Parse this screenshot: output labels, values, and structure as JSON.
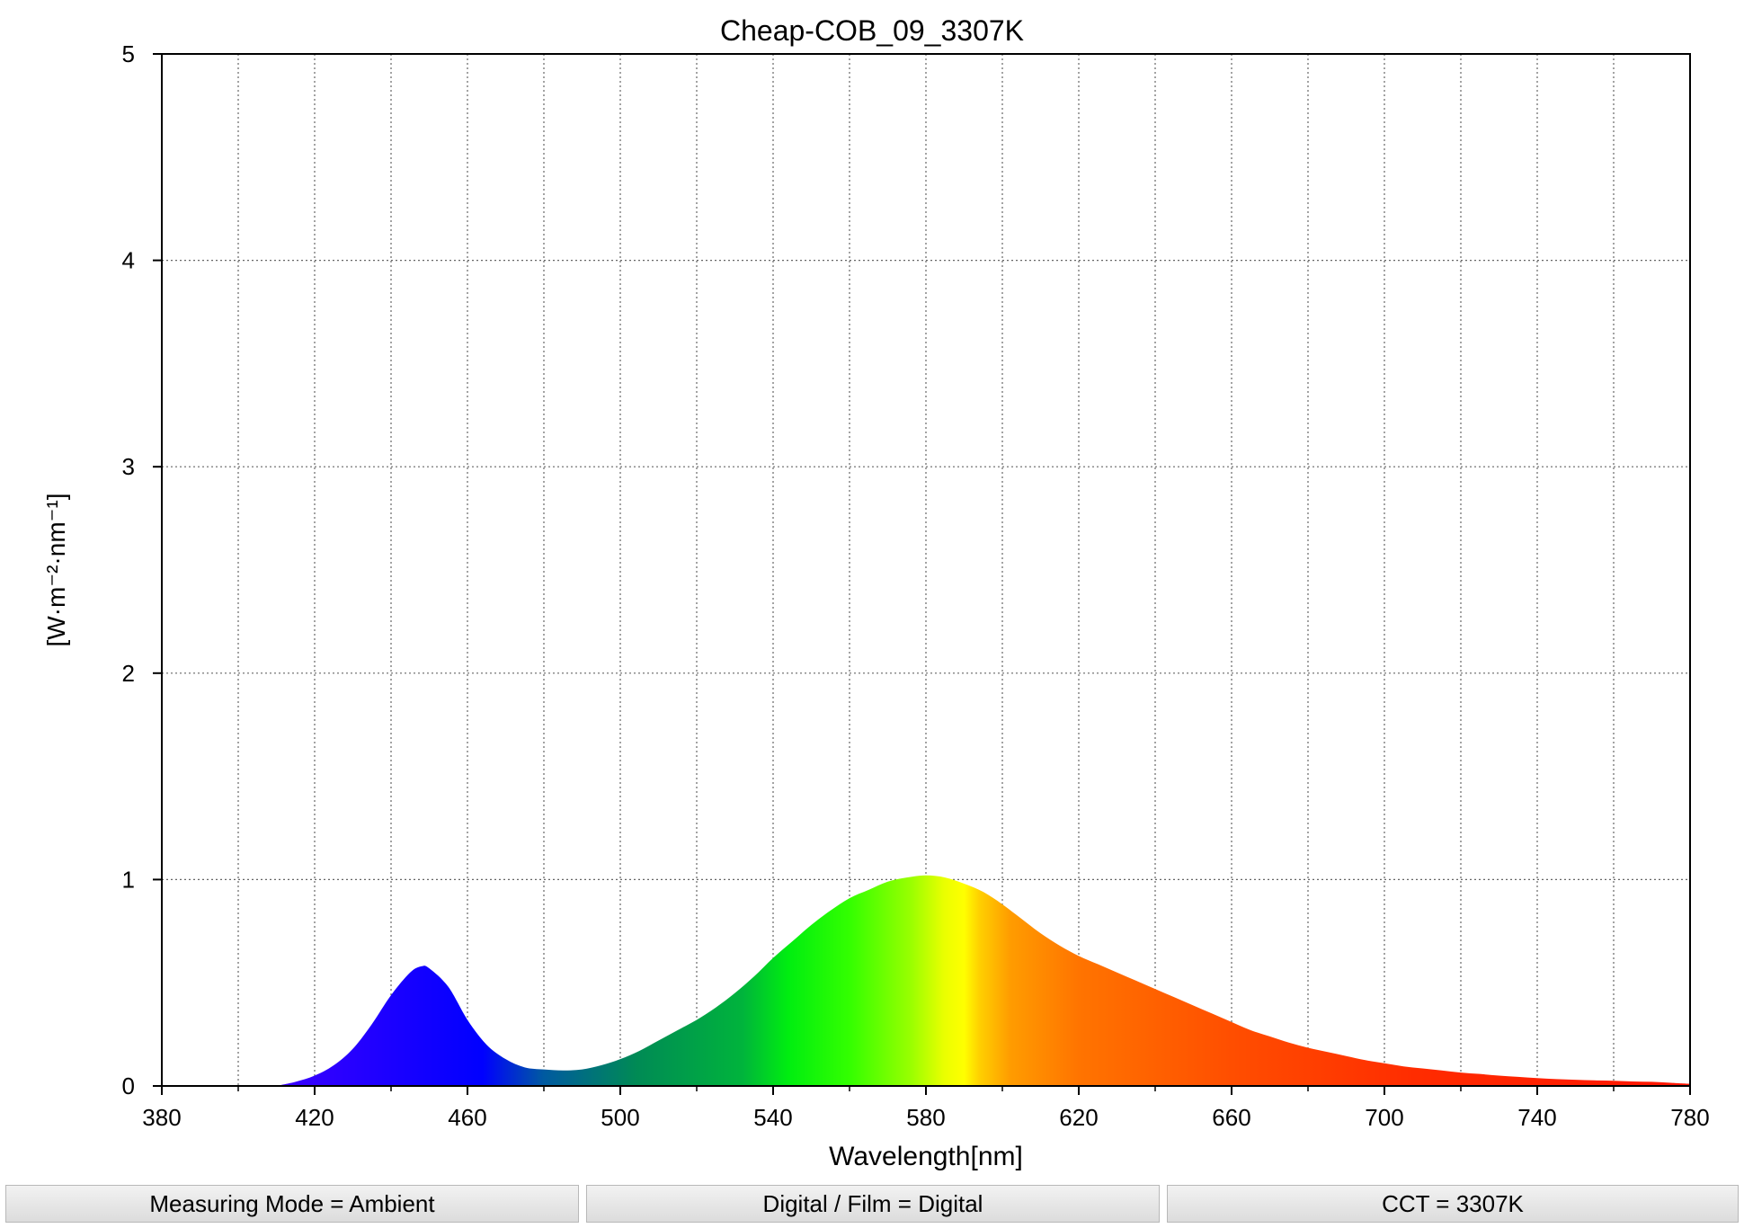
{
  "chart_data": {
    "type": "area",
    "title": "Cheap-COB_09_3307K",
    "xlabel": "Wavelength[nm]",
    "ylabel": "[W·m⁻²·nm⁻¹]",
    "xlim": [
      380,
      780
    ],
    "ylim": [
      0,
      5
    ],
    "xticks": [
      "380",
      "420",
      "460",
      "500",
      "540",
      "580",
      "620",
      "660",
      "700",
      "740",
      "780"
    ],
    "yticks": [
      "0",
      "1",
      "2",
      "3",
      "4",
      "5"
    ],
    "grid": true,
    "fill": "visible-spectrum-gradient",
    "x": [
      410,
      415,
      420,
      425,
      430,
      435,
      440,
      445,
      448,
      450,
      455,
      460,
      465,
      470,
      475,
      480,
      485,
      490,
      495,
      500,
      505,
      510,
      515,
      520,
      525,
      530,
      535,
      540,
      545,
      550,
      555,
      560,
      565,
      570,
      575,
      580,
      585,
      590,
      595,
      600,
      605,
      610,
      615,
      620,
      625,
      630,
      635,
      640,
      645,
      650,
      655,
      660,
      665,
      670,
      675,
      680,
      685,
      690,
      695,
      700,
      705,
      710,
      715,
      720,
      725,
      730,
      735,
      740,
      745,
      750,
      755,
      760,
      765,
      770,
      775,
      780
    ],
    "y": [
      0.0,
      0.02,
      0.05,
      0.1,
      0.18,
      0.3,
      0.44,
      0.55,
      0.58,
      0.57,
      0.48,
      0.32,
      0.2,
      0.13,
      0.09,
      0.08,
      0.075,
      0.08,
      0.1,
      0.13,
      0.17,
      0.22,
      0.27,
      0.32,
      0.38,
      0.45,
      0.53,
      0.62,
      0.7,
      0.78,
      0.85,
      0.91,
      0.95,
      0.99,
      1.01,
      1.02,
      1.01,
      0.98,
      0.94,
      0.88,
      0.81,
      0.74,
      0.68,
      0.63,
      0.59,
      0.55,
      0.51,
      0.47,
      0.43,
      0.39,
      0.35,
      0.31,
      0.27,
      0.24,
      0.21,
      0.185,
      0.165,
      0.145,
      0.125,
      0.11,
      0.095,
      0.085,
      0.075,
      0.065,
      0.058,
      0.05,
      0.044,
      0.038,
      0.033,
      0.03,
      0.027,
      0.025,
      0.022,
      0.02,
      0.015,
      0.01
    ]
  },
  "status": {
    "measuring_mode": "Measuring Mode = Ambient",
    "digital_film": "Digital / Film = Digital",
    "cct": "CCT = 3307K"
  }
}
